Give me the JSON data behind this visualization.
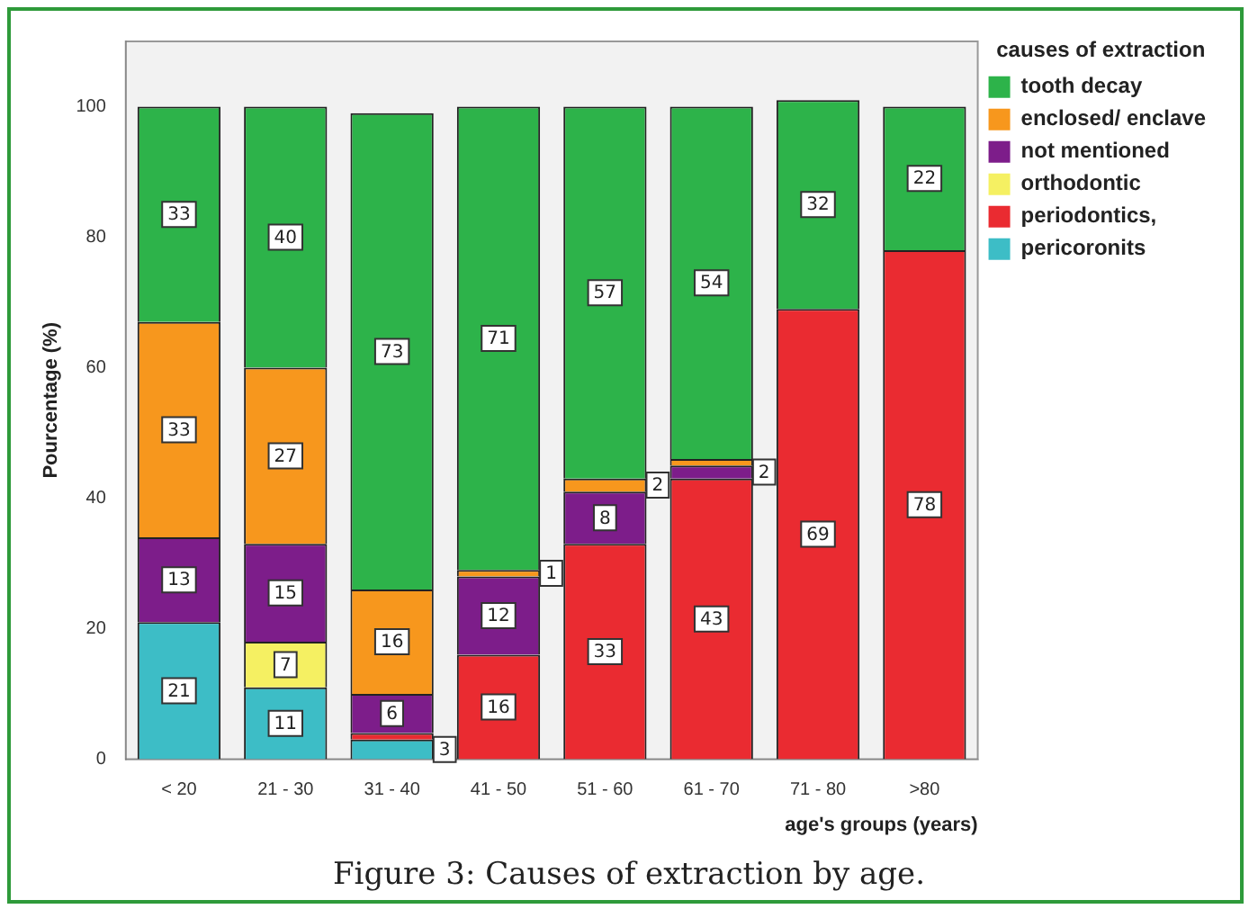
{
  "chart_data": {
    "type": "bar",
    "title": "Figure 3: Causes of extraction by age.",
    "xlabel": "age's groups (years)",
    "ylabel": "Pourcentage (%)",
    "legend_title": "causes of extraction",
    "categories": [
      "< 20",
      "21 - 30",
      "31 - 40",
      "41 - 50",
      "51 - 60",
      "61 - 70",
      "71 - 80",
      ">80"
    ],
    "stacked": true,
    "ylim": [
      0,
      110
    ],
    "yticks": [
      0,
      20,
      40,
      60,
      80,
      100
    ],
    "grid": false,
    "legend": "right",
    "series": [
      {
        "name": "pericoronits",
        "color": "#3dbdc6",
        "values": [
          21,
          11,
          3,
          null,
          null,
          null,
          null,
          null
        ],
        "value_labels": [
          "21",
          "11",
          "3",
          null,
          null,
          null,
          null,
          null
        ]
      },
      {
        "name": "periodontics,",
        "color": "#ea2b31",
        "values": [
          null,
          null,
          1,
          16,
          33,
          43,
          69,
          78
        ],
        "value_labels": [
          null,
          null,
          null,
          "16",
          "33",
          "43",
          "69",
          "78"
        ]
      },
      {
        "name": "orthodontic",
        "color": "#f5f062",
        "values": [
          null,
          7,
          null,
          null,
          null,
          null,
          null,
          null
        ],
        "value_labels": [
          null,
          "7",
          null,
          null,
          null,
          null,
          null,
          null
        ]
      },
      {
        "name": "not mentioned",
        "color": "#7d1d8a",
        "values": [
          13,
          15,
          6,
          12,
          8,
          2,
          null,
          null
        ],
        "value_labels": [
          "13",
          "15",
          "6",
          "12",
          "8",
          "2",
          null,
          null
        ]
      },
      {
        "name": "enclosed/ enclave",
        "color": "#f7971d",
        "values": [
          33,
          27,
          16,
          1,
          2,
          1,
          null,
          null
        ],
        "value_labels": [
          "33",
          "27",
          "16",
          "1",
          "2",
          null,
          null,
          null
        ]
      },
      {
        "name": "tooth decay",
        "color": "#2db34a",
        "values": [
          33,
          40,
          73,
          71,
          57,
          54,
          32,
          22
        ],
        "value_labels": [
          "33",
          "40",
          "73",
          "71",
          "57",
          "54",
          "32",
          "22"
        ]
      }
    ]
  }
}
